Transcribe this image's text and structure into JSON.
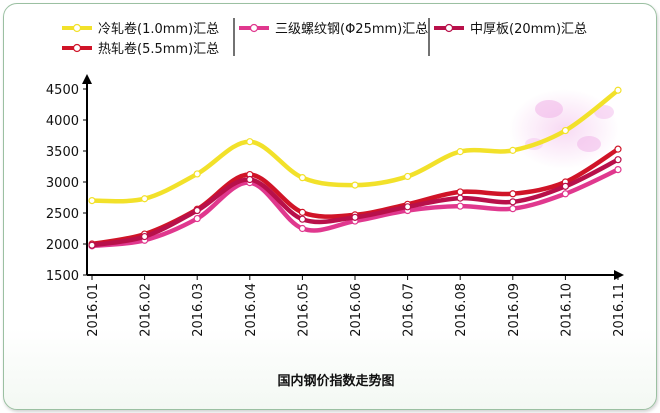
{
  "chart_data": {
    "type": "line",
    "title": "国内钢价指数走势图",
    "categories": [
      "2016.01",
      "2016.02",
      "2016.03",
      "2016.04",
      "2016.05",
      "2016.06",
      "2016.07",
      "2016.08",
      "2016.09",
      "2016.10",
      "2016.11"
    ],
    "ylim": [
      1500,
      4500
    ],
    "yticks": [
      1500,
      2000,
      2500,
      3000,
      3500,
      4000,
      4500
    ],
    "grid": false,
    "legend_position": "top",
    "series": [
      {
        "name": "冷轧卷(1.0mm)汇总",
        "color": "#f2e12a",
        "values": [
          2700,
          2730,
          3130,
          3650,
          3070,
          2950,
          3090,
          3490,
          3510,
          3830,
          4480
        ]
      },
      {
        "name": "热轧卷(5.5mm)汇总",
        "color": "#d01428",
        "values": [
          2000,
          2160,
          2560,
          3120,
          2510,
          2470,
          2640,
          2840,
          2810,
          3000,
          3530
        ]
      },
      {
        "name": "三级螺纹钢(Φ25mm)汇总",
        "color": "#e0388e",
        "values": [
          1970,
          2060,
          2410,
          2990,
          2250,
          2370,
          2540,
          2610,
          2570,
          2810,
          3200
        ]
      },
      {
        "name": "中厚板(20mm)汇总",
        "color": "#b8104a",
        "values": [
          1980,
          2120,
          2540,
          3040,
          2400,
          2430,
          2600,
          2740,
          2680,
          2930,
          3360
        ]
      }
    ]
  }
}
